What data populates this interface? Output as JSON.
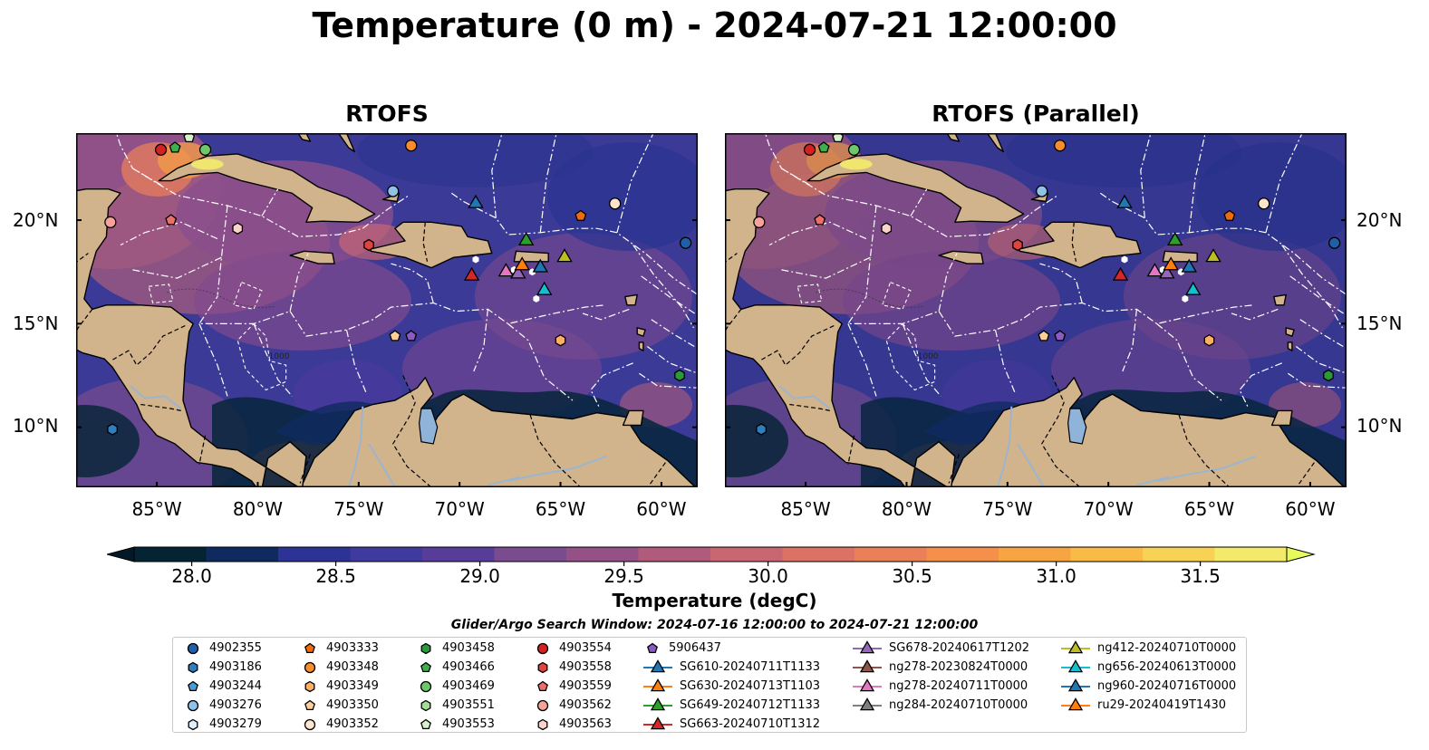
{
  "title": "Temperature (0 m) - 2024-07-21 12:00:00",
  "panels": [
    {
      "title": "RTOFS"
    },
    {
      "title": "RTOFS (Parallel)"
    }
  ],
  "axes": {
    "lat_labels": [
      "20°N",
      "15°N",
      "10°N"
    ],
    "lon_labels": [
      "85°W",
      "80°W",
      "75°W",
      "70°W",
      "65°W",
      "60°W"
    ],
    "lat_values": [
      20,
      15,
      10
    ],
    "lon_values": [
      -85,
      -80,
      -75,
      -70,
      -65,
      -60
    ],
    "lon_range": [
      -89,
      -58.2
    ],
    "lat_range": [
      7.1,
      24.2
    ],
    "contour_label": "-1000"
  },
  "colorbar": {
    "label": "Temperature (degC)",
    "ticks": [
      "28.0",
      "28.5",
      "29.0",
      "29.5",
      "30.0",
      "30.5",
      "31.0",
      "31.5"
    ],
    "tick_values": [
      28.0,
      28.5,
      29.0,
      29.5,
      30.0,
      30.5,
      31.0,
      31.5
    ],
    "range": [
      27.8,
      31.8
    ],
    "colors": [
      "#042333",
      "#0f2a5f",
      "#2c3395",
      "#3f3a9e",
      "#583c9a",
      "#7a4b8e",
      "#955086",
      "#b05b7c",
      "#c86672",
      "#dc7263",
      "#ea8058",
      "#f48f4c",
      "#f7a443",
      "#f9bb46",
      "#f8d254",
      "#f3ea6b"
    ],
    "under_color": "#031a26",
    "over_color": "#e8fa5b"
  },
  "search_window": "Glider/Argo Search Window: 2024-07-16 12:00:00 to 2024-07-21 12:00:00",
  "legend": {
    "columns": [
      [
        {
          "label": "4902355",
          "marker": "circle",
          "color": "#1f5fa8"
        },
        {
          "label": "4903186",
          "marker": "hexagon",
          "color": "#2f7fbf"
        },
        {
          "label": "4903244",
          "marker": "pentagon",
          "color": "#4b9ad1"
        },
        {
          "label": "4903276",
          "marker": "circle",
          "color": "#8ec2e6"
        },
        {
          "label": "4903279",
          "marker": "hexagon",
          "color": "#deeefa"
        }
      ],
      [
        {
          "label": "4903333",
          "marker": "pentagon",
          "color": "#f26b0a"
        },
        {
          "label": "4903348",
          "marker": "circle",
          "color": "#f98d2c"
        },
        {
          "label": "4903349",
          "marker": "hexagon",
          "color": "#fbb064"
        },
        {
          "label": "4903350",
          "marker": "pentagon",
          "color": "#fccf99"
        },
        {
          "label": "4903352",
          "marker": "circle",
          "color": "#fde6cb"
        }
      ],
      [
        {
          "label": "4903458",
          "marker": "hexagon",
          "color": "#2a9a3a"
        },
        {
          "label": "4903466",
          "marker": "pentagon",
          "color": "#3fae4d"
        },
        {
          "label": "4903469",
          "marker": "circle",
          "color": "#6cc86a"
        },
        {
          "label": "4903551",
          "marker": "hexagon",
          "color": "#a3dd98"
        },
        {
          "label": "4903553",
          "marker": "pentagon",
          "color": "#d6f2c8"
        }
      ],
      [
        {
          "label": "4903554",
          "marker": "circle",
          "color": "#d42222"
        },
        {
          "label": "4903558",
          "marker": "hexagon",
          "color": "#e0443f"
        },
        {
          "label": "4903559",
          "marker": "pentagon",
          "color": "#ec6e68"
        },
        {
          "label": "4903562",
          "marker": "circle",
          "color": "#f5a39b"
        },
        {
          "label": "4903563",
          "marker": "hexagon",
          "color": "#fbd3cd"
        }
      ],
      [
        {
          "label": "5906437",
          "marker": "pentagon",
          "color": "#8a5cc2"
        },
        {
          "label": "SG610-20240711T1133",
          "marker": "triangle",
          "color": "#1f77b4"
        },
        {
          "label": "SG630-20240713T1103",
          "marker": "triangle",
          "color": "#ff7f0e"
        },
        {
          "label": "SG649-20240712T1133",
          "marker": "triangle",
          "color": "#2ca02c"
        },
        {
          "label": "SG663-20240710T1312",
          "marker": "triangle",
          "color": "#d62728"
        }
      ],
      [
        {
          "label": "SG678-20240617T1202",
          "marker": "triangle",
          "color": "#9467bd"
        },
        {
          "label": "ng278-20230824T0000",
          "marker": "triangle",
          "color": "#8c564b"
        },
        {
          "label": "ng278-20240711T0000",
          "marker": "triangle",
          "color": "#e377c2"
        },
        {
          "label": "ng284-20240710T0000",
          "marker": "triangle",
          "color": "#7f7f7f"
        }
      ],
      [
        {
          "label": "ng412-20240710T0000",
          "marker": "triangle",
          "color": "#bcbd22"
        },
        {
          "label": "ng656-20240613T0000",
          "marker": "triangle",
          "color": "#17becf"
        },
        {
          "label": "ng960-20240716T0000",
          "marker": "triangle",
          "color": "#1f77b4"
        },
        {
          "label": "ru29-20240419T1430",
          "marker": "triangle",
          "color": "#ff7f0e"
        }
      ]
    ]
  },
  "argo_markers": [
    {
      "lon": -87.3,
      "lat": 19.9,
      "marker": "circle",
      "color": "#f5a39b"
    },
    {
      "lon": -84.3,
      "lat": 20.0,
      "marker": "pentagon",
      "color": "#ec6e68"
    },
    {
      "lon": -81.0,
      "lat": 19.6,
      "marker": "hexagon",
      "color": "#fbd3cd"
    },
    {
      "lon": -84.8,
      "lat": 23.4,
      "marker": "circle",
      "color": "#d42222"
    },
    {
      "lon": -84.1,
      "lat": 23.5,
      "marker": "pentagon",
      "color": "#3fae4d"
    },
    {
      "lon": -83.4,
      "lat": 24.0,
      "marker": "pentagon",
      "color": "#d6f2c8"
    },
    {
      "lon": -82.6,
      "lat": 23.4,
      "marker": "circle",
      "color": "#6cc86a"
    },
    {
      "lon": -72.4,
      "lat": 23.6,
      "marker": "circle",
      "color": "#f98d2c"
    },
    {
      "lon": -73.3,
      "lat": 21.4,
      "marker": "circle",
      "color": "#8ec2e6"
    },
    {
      "lon": -74.5,
      "lat": 18.8,
      "marker": "hexagon",
      "color": "#e0443f"
    },
    {
      "lon": -64.0,
      "lat": 20.2,
      "marker": "pentagon",
      "color": "#f26b0a"
    },
    {
      "lon": -62.3,
      "lat": 20.8,
      "marker": "circle",
      "color": "#fde6cb"
    },
    {
      "lon": -58.8,
      "lat": 18.9,
      "marker": "circle",
      "color": "#1f5fa8"
    },
    {
      "lon": -73.2,
      "lat": 14.4,
      "marker": "pentagon",
      "color": "#fccf99"
    },
    {
      "lon": -72.4,
      "lat": 14.4,
      "marker": "pentagon",
      "color": "#8a5cc2"
    },
    {
      "lon": -65.0,
      "lat": 14.2,
      "marker": "hexagon",
      "color": "#fbb064"
    },
    {
      "lon": -59.1,
      "lat": 12.5,
      "marker": "hexagon",
      "color": "#2a9a3a"
    },
    {
      "lon": -87.2,
      "lat": 9.9,
      "marker": "hexagon",
      "color": "#2f7fbf"
    }
  ],
  "glider_markers": [
    {
      "lon": -69.2,
      "lat": 20.8,
      "color": "#1f77b4"
    },
    {
      "lon": -66.7,
      "lat": 19.0,
      "color": "#2ca02c"
    },
    {
      "lon": -64.8,
      "lat": 18.2,
      "color": "#bcbd22"
    },
    {
      "lon": -69.4,
      "lat": 17.3,
      "color": "#d62728"
    },
    {
      "lon": -67.7,
      "lat": 17.5,
      "color": "#e377c2"
    },
    {
      "lon": -67.1,
      "lat": 17.4,
      "color": "#9467bd"
    },
    {
      "lon": -66.0,
      "lat": 17.7,
      "color": "#1f77b4"
    },
    {
      "lon": -66.9,
      "lat": 17.8,
      "color": "#ff7f0e"
    },
    {
      "lon": -65.8,
      "lat": 16.6,
      "color": "#17becf"
    }
  ]
}
